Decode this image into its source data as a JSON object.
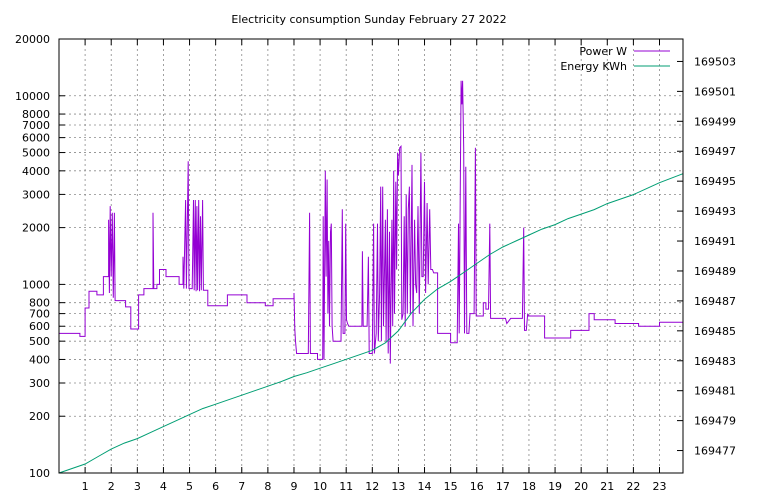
{
  "chart_data": {
    "type": "line",
    "title": "Electricity consumption Sunday February 27 2022",
    "x": {
      "min": 0,
      "max": 23.9,
      "ticks": [
        1,
        2,
        3,
        4,
        5,
        6,
        7,
        8,
        9,
        10,
        11,
        12,
        13,
        14,
        15,
        16,
        17,
        18,
        19,
        20,
        21,
        22,
        23
      ]
    },
    "y_left": {
      "scale": "log",
      "min": 100,
      "max": 20000,
      "ticks": [
        100,
        200,
        300,
        400,
        500,
        600,
        700,
        800,
        1000,
        2000,
        3000,
        4000,
        5000,
        6000,
        7000,
        8000,
        10000,
        20000
      ]
    },
    "y_right": {
      "scale": "linear",
      "min": 169475.5,
      "max": 169504.5,
      "ticks": [
        169477,
        169479,
        169481,
        169483,
        169485,
        169487,
        169489,
        169491,
        169493,
        169495,
        169497,
        169499,
        169501,
        169503
      ]
    },
    "grid": true,
    "legend_position": "top-right",
    "series": [
      {
        "name": "Power W",
        "axis": "left",
        "color": "#9400d3",
        "points": [
          [
            0,
            550
          ],
          [
            0.8,
            550
          ],
          [
            0.8,
            530
          ],
          [
            1.0,
            530
          ],
          [
            1.0,
            750
          ],
          [
            1.15,
            750
          ],
          [
            1.15,
            920
          ],
          [
            1.45,
            920
          ],
          [
            1.45,
            880
          ],
          [
            1.7,
            880
          ],
          [
            1.7,
            1100
          ],
          [
            1.9,
            1100
          ],
          [
            1.9,
            2200
          ],
          [
            1.93,
            900
          ],
          [
            1.96,
            2600
          ],
          [
            2.0,
            1100
          ],
          [
            2.04,
            2400
          ],
          [
            2.08,
            850
          ],
          [
            2.12,
            2400
          ],
          [
            2.15,
            820
          ],
          [
            2.55,
            820
          ],
          [
            2.55,
            760
          ],
          [
            2.75,
            760
          ],
          [
            2.75,
            580
          ],
          [
            3.05,
            580
          ],
          [
            3.05,
            880
          ],
          [
            3.25,
            880
          ],
          [
            3.25,
            950
          ],
          [
            3.6,
            950
          ],
          [
            3.6,
            2400
          ],
          [
            3.63,
            950
          ],
          [
            3.75,
            950
          ],
          [
            3.75,
            1000
          ],
          [
            3.85,
            1000
          ],
          [
            3.85,
            1200
          ],
          [
            4.1,
            1200
          ],
          [
            4.1,
            1100
          ],
          [
            4.6,
            1100
          ],
          [
            4.6,
            1000
          ],
          [
            4.75,
            1000
          ],
          [
            4.75,
            1400
          ],
          [
            4.78,
            950
          ],
          [
            4.85,
            2800
          ],
          [
            4.88,
            950
          ],
          [
            4.95,
            4500
          ],
          [
            4.98,
            950
          ],
          [
            5.1,
            950
          ],
          [
            5.15,
            2800
          ],
          [
            5.18,
            930
          ],
          [
            5.22,
            2800
          ],
          [
            5.25,
            920
          ],
          [
            5.28,
            2600
          ],
          [
            5.31,
            930
          ],
          [
            5.35,
            2800
          ],
          [
            5.38,
            920
          ],
          [
            5.42,
            2300
          ],
          [
            5.45,
            930
          ],
          [
            5.5,
            2800
          ],
          [
            5.53,
            930
          ],
          [
            5.7,
            930
          ],
          [
            5.7,
            770
          ],
          [
            6.45,
            770
          ],
          [
            6.45,
            880
          ],
          [
            7.2,
            880
          ],
          [
            7.2,
            800
          ],
          [
            7.9,
            800
          ],
          [
            7.9,
            770
          ],
          [
            8.2,
            770
          ],
          [
            8.2,
            840
          ],
          [
            9.0,
            840
          ],
          [
            9.0,
            900
          ],
          [
            9.03,
            580
          ],
          [
            9.06,
            500
          ],
          [
            9.1,
            430
          ],
          [
            9.55,
            430
          ],
          [
            9.6,
            2400
          ],
          [
            9.63,
            430
          ],
          [
            9.9,
            430
          ],
          [
            9.9,
            400
          ],
          [
            10.1,
            400
          ],
          [
            10.12,
            2300
          ],
          [
            10.15,
            400
          ],
          [
            10.2,
            4000
          ],
          [
            10.23,
            1100
          ],
          [
            10.27,
            3600
          ],
          [
            10.3,
            700
          ],
          [
            10.33,
            1700
          ],
          [
            10.36,
            600
          ],
          [
            10.4,
            1900
          ],
          [
            10.43,
            2100
          ],
          [
            10.46,
            600
          ],
          [
            10.5,
            500
          ],
          [
            10.8,
            500
          ],
          [
            10.85,
            2500
          ],
          [
            10.88,
            550
          ],
          [
            10.95,
            550
          ],
          [
            10.98,
            2100
          ],
          [
            11.01,
            650
          ],
          [
            11.05,
            620
          ],
          [
            11.1,
            600
          ],
          [
            11.6,
            600
          ],
          [
            11.62,
            1500
          ],
          [
            11.65,
            600
          ],
          [
            11.8,
            600
          ],
          [
            11.85,
            1400
          ],
          [
            11.88,
            430
          ],
          [
            12.0,
            430
          ],
          [
            12.05,
            2100
          ],
          [
            12.08,
            430
          ],
          [
            12.15,
            550
          ],
          [
            12.2,
            2100
          ],
          [
            12.23,
            500
          ],
          [
            12.28,
            900
          ],
          [
            12.32,
            3300
          ],
          [
            12.35,
            500
          ],
          [
            12.4,
            3300
          ],
          [
            12.43,
            600
          ],
          [
            12.5,
            2200
          ],
          [
            12.53,
            500
          ],
          [
            12.58,
            2500
          ],
          [
            12.61,
            430
          ],
          [
            12.66,
            1900
          ],
          [
            12.69,
            380
          ],
          [
            12.75,
            2200
          ],
          [
            12.78,
            600
          ],
          [
            12.82,
            4000
          ],
          [
            12.85,
            700
          ],
          [
            12.9,
            3500
          ],
          [
            12.93,
            1200
          ],
          [
            12.97,
            5000
          ],
          [
            13.0,
            3800
          ],
          [
            13.05,
            5300
          ],
          [
            13.1,
            5400
          ],
          [
            13.13,
            650
          ],
          [
            13.18,
            700
          ],
          [
            13.22,
            2300
          ],
          [
            13.26,
            600
          ],
          [
            13.3,
            3000
          ],
          [
            13.34,
            700
          ],
          [
            13.38,
            2500
          ],
          [
            13.42,
            3300
          ],
          [
            13.46,
            700
          ],
          [
            13.52,
            4300
          ],
          [
            13.56,
            600
          ],
          [
            13.62,
            2200
          ],
          [
            13.66,
            1000
          ],
          [
            13.7,
            900
          ],
          [
            13.75,
            2600
          ],
          [
            13.8,
            700
          ],
          [
            13.86,
            5000
          ],
          [
            13.9,
            1100
          ],
          [
            13.95,
            1100
          ],
          [
            14.0,
            3500
          ],
          [
            14.04,
            900
          ],
          [
            14.1,
            2700
          ],
          [
            14.14,
            1000
          ],
          [
            14.2,
            2500
          ],
          [
            14.24,
            1200
          ],
          [
            14.3,
            1200
          ],
          [
            14.35,
            1150
          ],
          [
            14.5,
            1150
          ],
          [
            14.5,
            550
          ],
          [
            15.0,
            550
          ],
          [
            15.0,
            490
          ],
          [
            15.25,
            490
          ],
          [
            15.3,
            2100
          ],
          [
            15.33,
            550
          ],
          [
            15.4,
            12000
          ],
          [
            15.43,
            9000
          ],
          [
            15.46,
            12000
          ],
          [
            15.5,
            5300
          ],
          [
            15.53,
            550
          ],
          [
            15.58,
            4200
          ],
          [
            15.62,
            550
          ],
          [
            15.7,
            550
          ],
          [
            15.74,
            700
          ],
          [
            15.9,
            700
          ],
          [
            15.95,
            5300
          ],
          [
            15.98,
            680
          ],
          [
            16.25,
            680
          ],
          [
            16.25,
            800
          ],
          [
            16.35,
            800
          ],
          [
            16.35,
            740
          ],
          [
            16.45,
            740
          ],
          [
            16.5,
            2100
          ],
          [
            16.53,
            660
          ],
          [
            17.1,
            660
          ],
          [
            17.15,
            620
          ],
          [
            17.3,
            660
          ],
          [
            17.75,
            660
          ],
          [
            17.8,
            2000
          ],
          [
            17.83,
            570
          ],
          [
            17.9,
            570
          ],
          [
            17.95,
            700
          ],
          [
            17.97,
            680
          ],
          [
            18.6,
            680
          ],
          [
            18.6,
            520
          ],
          [
            19.6,
            520
          ],
          [
            19.6,
            570
          ],
          [
            20.3,
            570
          ],
          [
            20.3,
            700
          ],
          [
            20.5,
            700
          ],
          [
            20.5,
            650
          ],
          [
            21.3,
            650
          ],
          [
            21.3,
            620
          ],
          [
            22.2,
            620
          ],
          [
            22.2,
            600
          ],
          [
            23.0,
            600
          ],
          [
            23.0,
            630
          ],
          [
            23.9,
            630
          ]
        ]
      },
      {
        "name": "Energy KWh",
        "axis": "right",
        "color": "#009e73",
        "points": [
          [
            0,
            169475.5
          ],
          [
            1.0,
            169476.1
          ],
          [
            1.5,
            169476.6
          ],
          [
            2.0,
            169477.1
          ],
          [
            2.5,
            169477.5
          ],
          [
            3.0,
            169477.8
          ],
          [
            3.5,
            169478.2
          ],
          [
            4.0,
            169478.6
          ],
          [
            4.5,
            169479.0
          ],
          [
            5.0,
            169479.4
          ],
          [
            5.5,
            169479.8
          ],
          [
            6.0,
            169480.1
          ],
          [
            6.5,
            169480.4
          ],
          [
            7.0,
            169480.7
          ],
          [
            7.5,
            169481.0
          ],
          [
            8.0,
            169481.3
          ],
          [
            8.5,
            169481.6
          ],
          [
            9.0,
            169481.95
          ],
          [
            9.5,
            169482.2
          ],
          [
            10.0,
            169482.5
          ],
          [
            10.5,
            169482.8
          ],
          [
            11.0,
            169483.1
          ],
          [
            11.5,
            169483.4
          ],
          [
            12.0,
            169483.7
          ],
          [
            12.5,
            169484.2
          ],
          [
            13.0,
            169485.0
          ],
          [
            13.5,
            169486.2
          ],
          [
            14.0,
            169487.1
          ],
          [
            14.5,
            169487.8
          ],
          [
            15.0,
            169488.3
          ],
          [
            15.5,
            169488.9
          ],
          [
            16.0,
            169489.5
          ],
          [
            16.5,
            169490.1
          ],
          [
            17.0,
            169490.6
          ],
          [
            17.5,
            169491.0
          ],
          [
            18.0,
            169491.4
          ],
          [
            18.5,
            169491.8
          ],
          [
            19.0,
            169492.1
          ],
          [
            19.5,
            169492.5
          ],
          [
            20.0,
            169492.8
          ],
          [
            20.5,
            169493.1
          ],
          [
            21.0,
            169493.5
          ],
          [
            21.5,
            169493.8
          ],
          [
            22.0,
            169494.1
          ],
          [
            22.5,
            169494.5
          ],
          [
            23.0,
            169494.9
          ],
          [
            23.9,
            169495.5
          ]
        ]
      }
    ]
  }
}
